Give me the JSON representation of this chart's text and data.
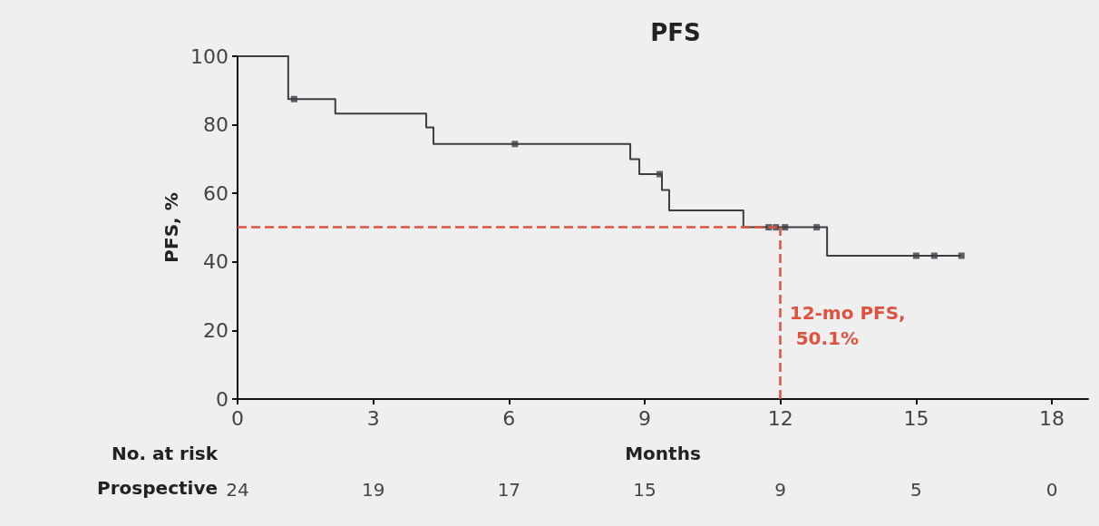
{
  "chart_data": {
    "type": "step",
    "title": "PFS",
    "xlabel": "Months",
    "ylabel": "PFS, %",
    "series": [
      {
        "color": "#3a3f44",
        "marker": "none",
        "x": [
          0,
          1.12,
          2.16,
          4.17,
          4.33,
          8.68,
          8.88,
          9.38,
          9.54,
          11.18,
          13.03,
          16.0
        ],
        "values": [
          100,
          87.5,
          83.3,
          79.2,
          74.4,
          70,
          65.6,
          61,
          55,
          50.1,
          41.8,
          41.8
        ]
      },
      {
        "type": "scatter",
        "color": "#3a3f44",
        "marker": "square",
        "x": [
          1.25,
          6.13,
          9.33,
          11.74,
          11.9,
          12.1,
          12.8,
          15.0,
          15.4,
          16.0
        ],
        "values": [
          87.5,
          74.4,
          65.6,
          50.1,
          50.1,
          50.1,
          50.1,
          41.8,
          41.8,
          41.8
        ]
      }
    ],
    "xlim": [
      0,
      18.8
    ],
    "xticks": [
      0,
      3,
      6,
      9,
      12,
      15,
      18
    ],
    "ylim": [
      0,
      100
    ],
    "yticks": [
      0,
      20,
      40,
      60,
      80,
      100
    ],
    "grid": false,
    "ref_lines": [
      {
        "axis": "y",
        "value": 50.1,
        "color": "#e0523f",
        "line_style": "dashed"
      },
      {
        "axis": "x",
        "value": 12,
        "color": "#e0523f",
        "line_style": "dashed"
      }
    ],
    "annotations": [
      "12-mo PFS, 50.1%",
      "No. at risk",
      "Prospective",
      "24",
      "19",
      "17",
      "15",
      "9",
      "5",
      "0"
    ]
  }
}
